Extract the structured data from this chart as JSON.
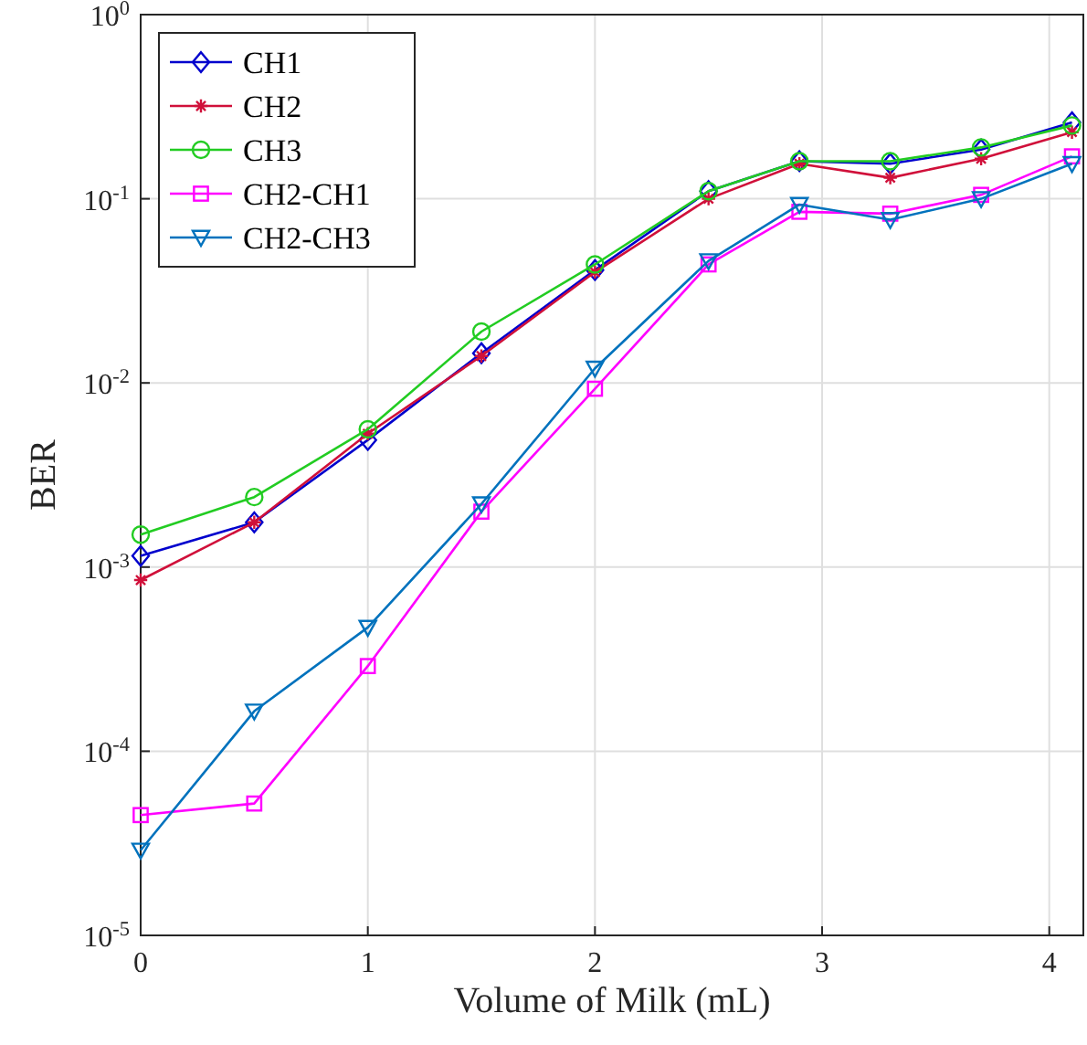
{
  "chart_data": {
    "type": "line",
    "xlabel": "Volume of Milk (mL)",
    "ylabel": "BER",
    "log": "y",
    "grid": true,
    "legend": "top left",
    "x": [
      0,
      0.5,
      1,
      1.5,
      2,
      2.5,
      2.9,
      3.3,
      3.7,
      4.1
    ],
    "xlim": [
      0,
      4.15
    ],
    "xticks": [
      0,
      1,
      2,
      3,
      4
    ],
    "ylim": [
      1e-05,
      1
    ],
    "yticks": [
      {
        "value": 1e-05,
        "label": "10$^{-5}$"
      },
      {
        "value": 0.0001,
        "label": "10$^{-4}$"
      },
      {
        "value": 0.001,
        "label": "10$^{-3}$"
      },
      {
        "value": 0.01,
        "label": "10$^{-2}$"
      },
      {
        "value": 0.1,
        "label": "10$^{-1}$"
      },
      {
        "value": 1,
        "label": "10$^{0}$"
      }
    ],
    "series": [
      {
        "name": "CH1",
        "color": "#0000cd",
        "marker": "diamond",
        "values": [
          0.00115,
          0.00175,
          0.0049,
          0.0145,
          0.041,
          0.11,
          0.16,
          0.155,
          0.185,
          0.26
        ]
      },
      {
        "name": "CH2",
        "color": "#d0103a",
        "marker": "cross",
        "values": [
          0.00085,
          0.00175,
          0.0053,
          0.014,
          0.04,
          0.1,
          0.155,
          0.13,
          0.165,
          0.23
        ]
      },
      {
        "name": "CH3",
        "color": "#22cc22",
        "marker": "circle",
        "values": [
          0.0015,
          0.0024,
          0.0056,
          0.019,
          0.044,
          0.11,
          0.16,
          0.16,
          0.19,
          0.25
        ]
      },
      {
        "name": "CH2-CH1",
        "color": "#ff00ff",
        "marker": "square",
        "values": [
          4.5e-05,
          5.2e-05,
          0.00029,
          0.002,
          0.0093,
          0.044,
          0.085,
          0.083,
          0.105,
          0.17
        ]
      },
      {
        "name": "CH2-CH3",
        "color": "#0072bd",
        "marker": "triangle",
        "values": [
          2.9e-05,
          0.000165,
          0.00047,
          0.0022,
          0.012,
          0.046,
          0.093,
          0.077,
          0.1,
          0.155
        ]
      }
    ]
  }
}
